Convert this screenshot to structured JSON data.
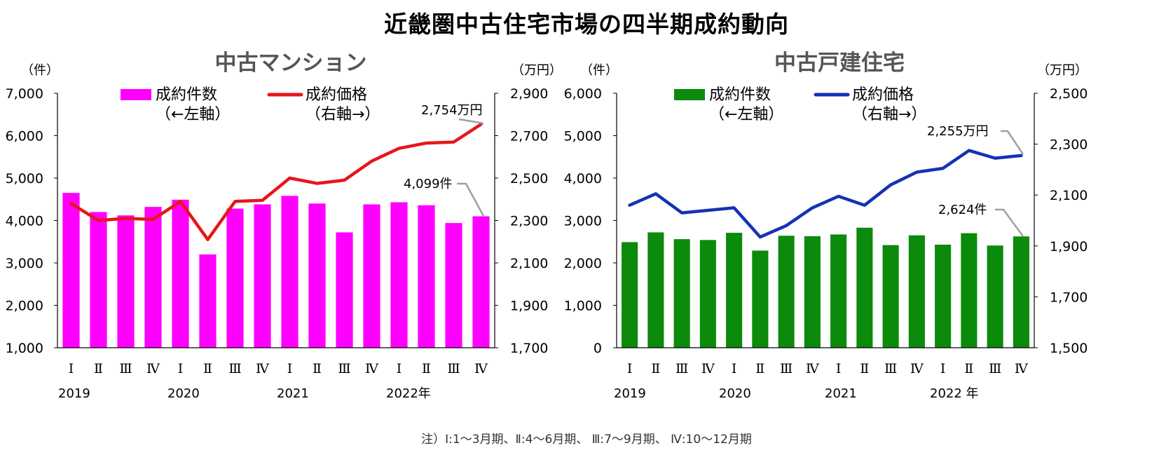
{
  "title": "近畿圏中古住宅市場の四半期成約動向",
  "note": "注）Ⅰ:1～3月期、Ⅱ:4～6月期、 Ⅲ:7～9月期、 Ⅳ:10～12月期",
  "colors": {
    "mansion_bar": "#ff00ff",
    "mansion_line": "#e8141a",
    "house_bar": "#0b8a0b",
    "house_line": "#1432b4",
    "annotation_line": "#a0a0a0",
    "axis": "#000000"
  },
  "chart_data": [
    {
      "type": "bar",
      "title": "中古マンション",
      "ylabel_left": "（件）",
      "ylabel_right": "（万円）",
      "categories": [
        "Ⅰ",
        "Ⅱ",
        "Ⅲ",
        "Ⅳ",
        "Ⅰ",
        "Ⅱ",
        "Ⅲ",
        "Ⅳ",
        "Ⅰ",
        "Ⅱ",
        "Ⅲ",
        "Ⅳ",
        "Ⅰ",
        "Ⅱ",
        "Ⅲ",
        "Ⅳ"
      ],
      "year_labels": [
        "2019",
        "2020",
        "2021",
        "2022年"
      ],
      "left_ylim": [
        1000,
        7000
      ],
      "left_ticks": [
        "1,000",
        "2,000",
        "3,000",
        "4,000",
        "5,000",
        "6,000",
        "7,000"
      ],
      "right_ylim": [
        1700,
        2900
      ],
      "right_ticks": [
        "1,700",
        "1,900",
        "2,100",
        "2,300",
        "2,500",
        "2,700",
        "2,900"
      ],
      "series": [
        {
          "name": "成約件数",
          "name_sub": "（←左軸）",
          "axis": "left",
          "kind": "bar",
          "values": [
            4650,
            4200,
            4120,
            4320,
            4490,
            3200,
            4280,
            4380,
            4580,
            4400,
            3720,
            4380,
            4430,
            4360,
            3940,
            4099
          ]
        },
        {
          "name": "成約価格",
          "name_sub": "（右軸→）",
          "axis": "right",
          "kind": "line",
          "values": [
            2380,
            2300,
            2310,
            2305,
            2390,
            2210,
            2390,
            2395,
            2500,
            2475,
            2490,
            2580,
            2640,
            2665,
            2670,
            2754
          ]
        }
      ],
      "annotations": [
        {
          "text": "2,754万円",
          "series": 1,
          "index": 15
        },
        {
          "text": "4,099件",
          "series": 0,
          "index": 15
        }
      ]
    },
    {
      "type": "bar",
      "title": "中古戸建住宅",
      "ylabel_left": "（件）",
      "ylabel_right": "（万円）",
      "categories": [
        "Ⅰ",
        "Ⅱ",
        "Ⅲ",
        "Ⅳ",
        "Ⅰ",
        "Ⅱ",
        "Ⅲ",
        "Ⅳ",
        "Ⅰ",
        "Ⅱ",
        "Ⅲ",
        "Ⅳ",
        "Ⅰ",
        "Ⅱ",
        "Ⅲ",
        "Ⅳ"
      ],
      "year_labels": [
        "2019",
        "2020",
        "2021",
        "2022 年"
      ],
      "left_ylim": [
        0,
        6000
      ],
      "left_ticks": [
        "0",
        "1,000",
        "2,000",
        "3,000",
        "4,000",
        "5,000",
        "6,000"
      ],
      "right_ylim": [
        1500,
        2500
      ],
      "right_ticks": [
        "1,500",
        "1,700",
        "1,900",
        "2,100",
        "2,300",
        "2,500"
      ],
      "series": [
        {
          "name": "成約件数",
          "name_sub": "（←左軸）",
          "axis": "left",
          "kind": "bar",
          "values": [
            2490,
            2720,
            2560,
            2540,
            2710,
            2290,
            2640,
            2630,
            2670,
            2830,
            2420,
            2650,
            2430,
            2700,
            2410,
            2624
          ]
        },
        {
          "name": "成約価格",
          "name_sub": "（右軸→）",
          "axis": "right",
          "kind": "line",
          "values": [
            2060,
            2105,
            2030,
            2040,
            2050,
            1935,
            1980,
            2050,
            2095,
            2060,
            2140,
            2190,
            2205,
            2275,
            2245,
            2255
          ]
        }
      ],
      "annotations": [
        {
          "text": "2,255万円",
          "series": 1,
          "index": 15
        },
        {
          "text": "2,624件",
          "series": 0,
          "index": 15
        }
      ]
    }
  ]
}
